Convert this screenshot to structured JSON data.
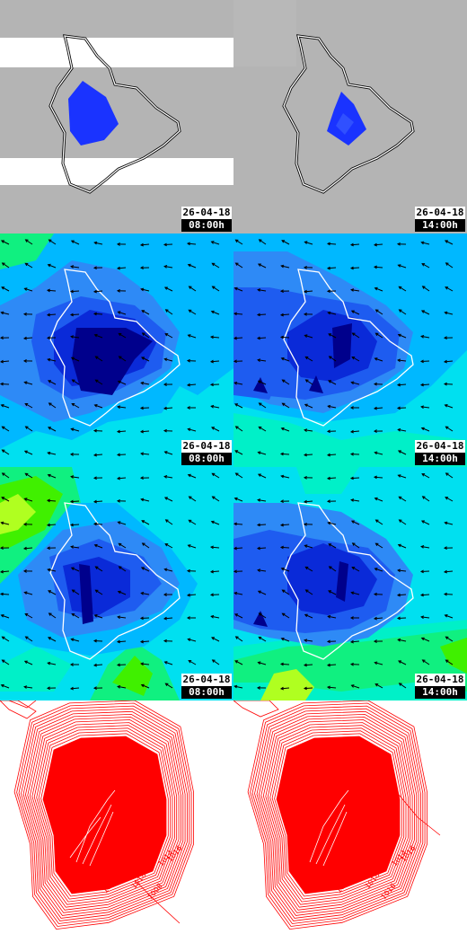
{
  "colors": {
    "cloud_gray": "#b4b4b4",
    "precip_blue": "#1a33ff",
    "wind_palette": [
      "#00008c",
      "#0a2ad8",
      "#1e5cf0",
      "#2e8af6",
      "#00b8ff",
      "#00e0f0",
      "#00f0c8",
      "#10f080",
      "#40f000",
      "#b0ff20"
    ],
    "pressure_red": "#ff0000"
  },
  "panels": [
    {
      "row": "cloud",
      "col": 0,
      "date": "26-04-18",
      "time": "08:00h"
    },
    {
      "row": "cloud",
      "col": 1,
      "date": "26-04-18",
      "time": "14:00h"
    },
    {
      "row": "wind_a",
      "col": 0,
      "date": "26-04-18",
      "time": "08:00h"
    },
    {
      "row": "wind_a",
      "col": 1,
      "date": "26-04-18",
      "time": "14:00h"
    },
    {
      "row": "wind_b",
      "col": 0,
      "date": "26-04-18",
      "time": "08:00h"
    },
    {
      "row": "wind_b",
      "col": 1,
      "date": "26-04-18",
      "time": "14:00h"
    },
    {
      "row": "pressure",
      "col": 0
    },
    {
      "row": "pressure",
      "col": 1
    }
  ],
  "isobar_labels": {
    "left": [
      "1014",
      "1016",
      "1018",
      "1010",
      "1008"
    ],
    "right": [
      "1014",
      "1016",
      "1018",
      "1010",
      "1016"
    ]
  }
}
